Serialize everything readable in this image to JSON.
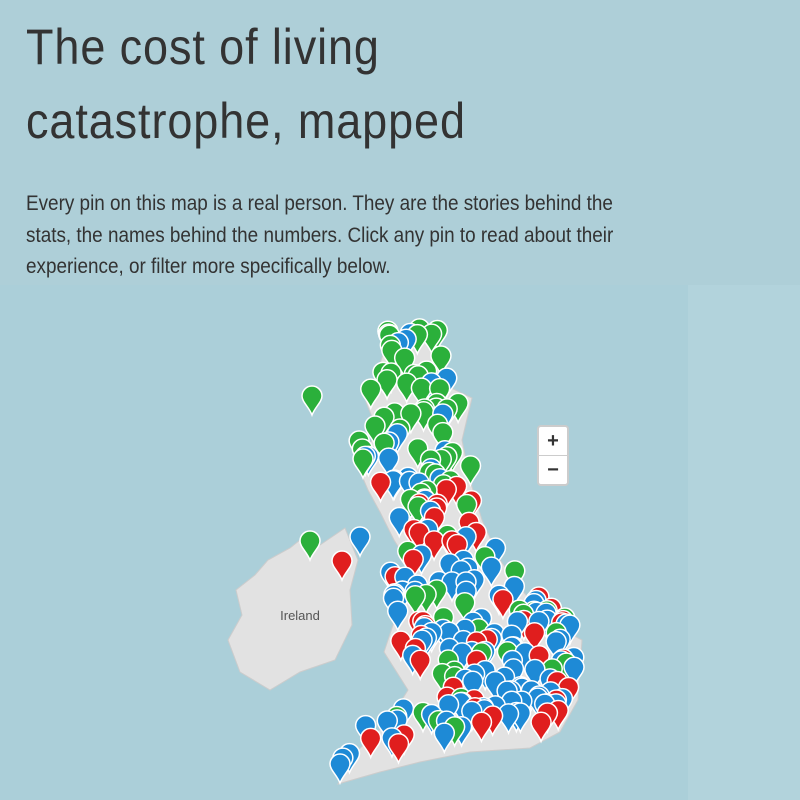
{
  "header": {
    "title_lines": [
      "The cost of living",
      "catastrophe, mapped"
    ],
    "intro_lines": [
      "Every pin on this map is a real person. They are the stories behind the",
      "stats, the names behind the numbers. Click any pin to read about their",
      "experience, or filter more specifically below."
    ]
  },
  "map": {
    "label": "Ireland",
    "zoom_in": "+",
    "zoom_out": "−"
  }
}
